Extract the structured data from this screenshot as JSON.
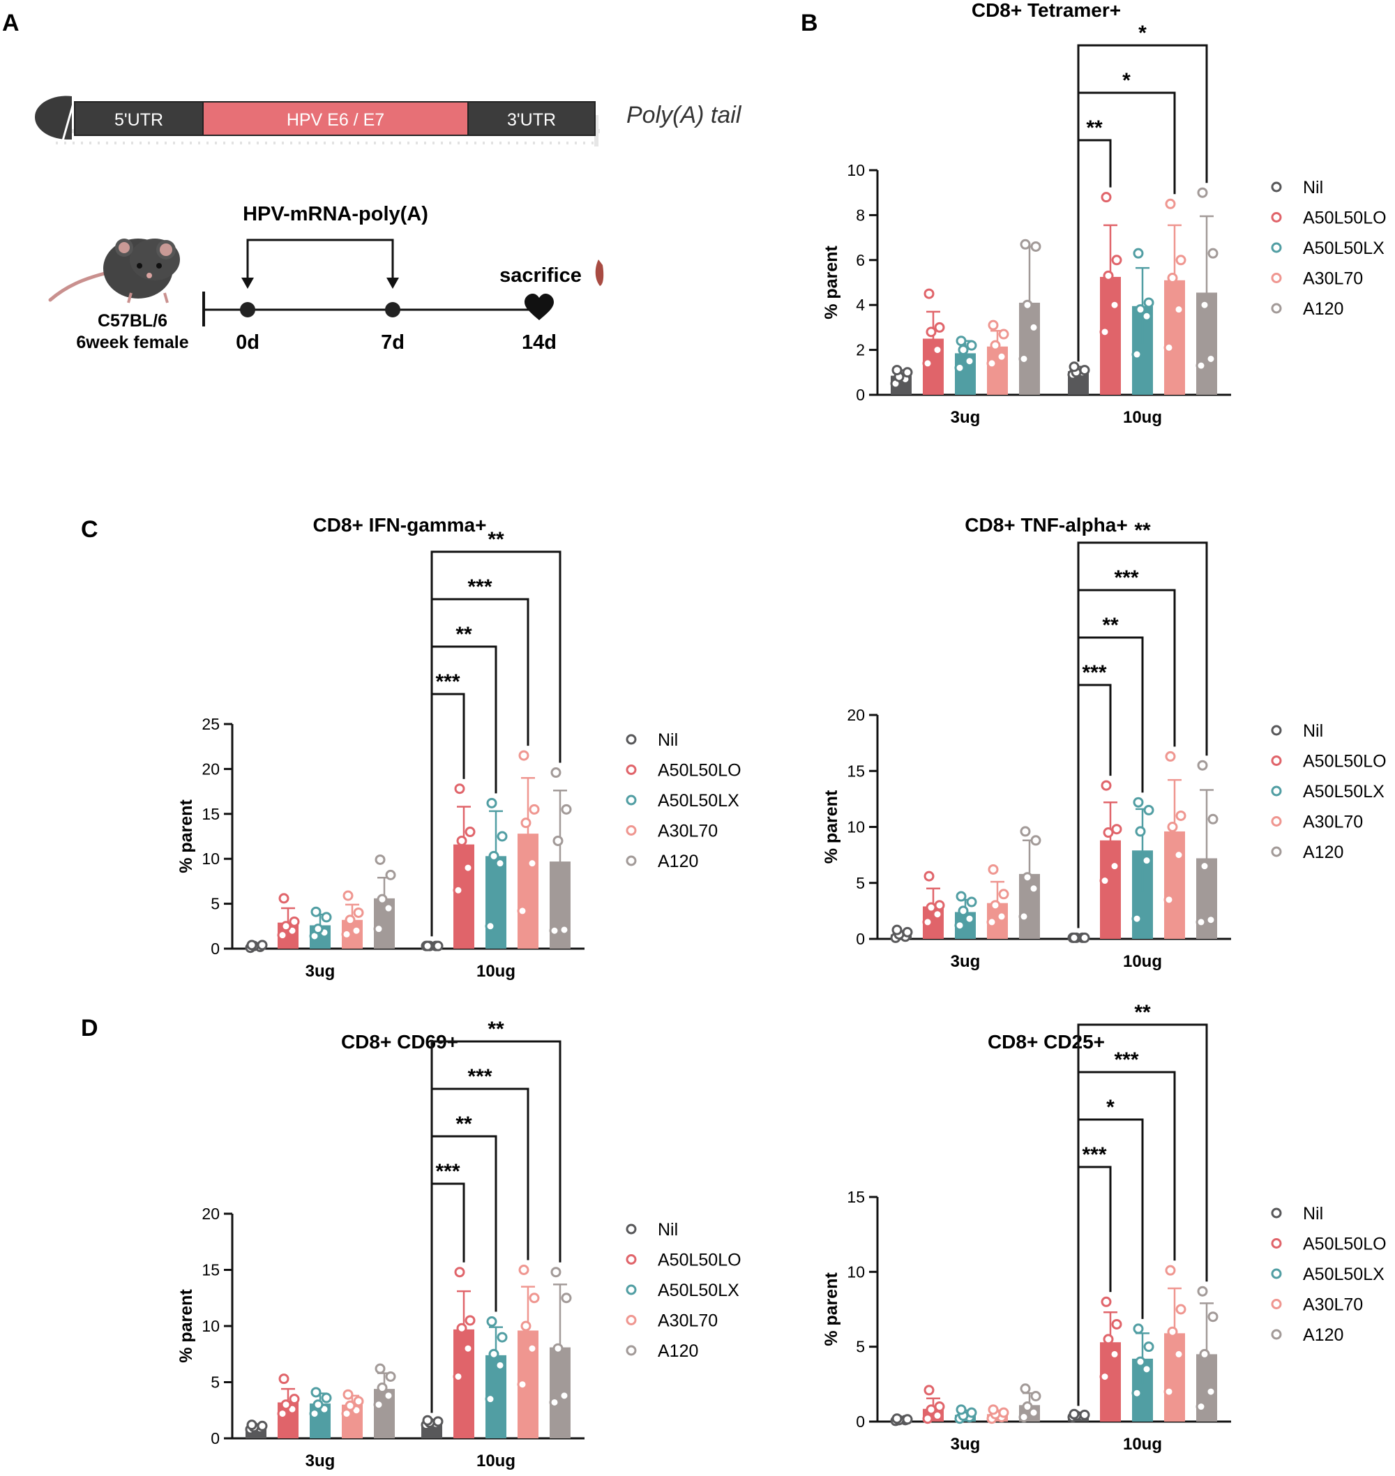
{
  "panels": {
    "A": "A",
    "B": "B",
    "C": "C",
    "D": "D"
  },
  "construct": {
    "utr5": "5'UTR",
    "insert": "HPV E6 / E7",
    "utr3": "3'UTR",
    "tail": "Poly(A) tail"
  },
  "schedule": {
    "title": "HPV-mRNA-poly(A)",
    "mouse_line1": "C57BL/6",
    "mouse_line2": "6week female",
    "day0": "0d",
    "day7": "7d",
    "day14": "14d",
    "endpoint": "sacrifice"
  },
  "colors": {
    "Nil": "#58585a",
    "A50L50LO": "#e0646a",
    "A50L50LX": "#519ea3",
    "A30L70": "#ef9690",
    "A120": "#a29a98"
  },
  "chart_data": [
    {
      "id": "tetramer",
      "type": "bar",
      "title": "CD8+ Tetramer+",
      "ylabel": "% parent",
      "ylim": [
        0,
        10
      ],
      "yticks": [
        0,
        2,
        4,
        6,
        8,
        10
      ],
      "categories": [
        "3ug",
        "10ug"
      ],
      "legend": [
        "Nil",
        "A50L50LO",
        "A50L50LX",
        "A30L70",
        "A120"
      ],
      "series": [
        {
          "name": "Nil",
          "values": [
            0.85,
            1.05
          ],
          "sd": [
            0.25,
            0.2
          ],
          "points": [
            [
              0.5,
              0.7,
              0.8,
              1.0,
              1.1
            ],
            [
              0.9,
              1.0,
              1.0,
              1.1,
              1.25
            ]
          ]
        },
        {
          "name": "A50L50LO",
          "values": [
            2.5,
            5.25
          ],
          "sd": [
            1.2,
            2.3
          ],
          "points": [
            [
              1.4,
              2.0,
              2.8,
              3.0,
              4.5
            ],
            [
              2.8,
              4.0,
              5.3,
              6.0,
              8.8
            ]
          ]
        },
        {
          "name": "A50L50LX",
          "values": [
            1.85,
            3.95
          ],
          "sd": [
            0.55,
            1.7
          ],
          "points": [
            [
              1.2,
              1.5,
              2.0,
              2.2,
              2.4
            ],
            [
              1.8,
              3.5,
              3.8,
              4.1,
              6.3
            ]
          ]
        },
        {
          "name": "A30L70",
          "values": [
            2.15,
            5.1
          ],
          "sd": [
            0.7,
            2.45
          ],
          "points": [
            [
              1.4,
              1.7,
              2.2,
              2.7,
              3.1
            ],
            [
              2.1,
              3.8,
              5.2,
              6.0,
              8.5
            ]
          ]
        },
        {
          "name": "A120",
          "values": [
            4.1,
            4.55
          ],
          "sd": [
            2.5,
            3.4
          ],
          "points": [
            [
              1.6,
              3.0,
              4.0,
              6.6,
              6.7
            ],
            [
              1.3,
              1.6,
              4.0,
              6.3,
              9.0
            ]
          ]
        }
      ],
      "significance": [
        {
          "group": "10ug",
          "from": "Nil",
          "to": "A50L50LO",
          "label": "**"
        },
        {
          "group": "10ug",
          "from": "Nil",
          "to": "A30L70",
          "label": "*"
        },
        {
          "group": "10ug",
          "from": "Nil",
          "to": "A120",
          "label": "*"
        }
      ]
    },
    {
      "id": "ifng",
      "type": "bar",
      "title": "CD8+ IFN-gamma+",
      "ylabel": "% parent",
      "ylim": [
        0,
        25
      ],
      "yticks": [
        0,
        5,
        10,
        15,
        20,
        25
      ],
      "categories": [
        "3ug",
        "10ug"
      ],
      "legend": [
        "Nil",
        "A50L50LO",
        "A50L50LX",
        "A30L70",
        "A120"
      ],
      "series": [
        {
          "name": "Nil",
          "values": [
            0.3,
            0.3
          ],
          "sd": [
            0.1,
            0.05
          ],
          "points": [
            [
              0.1,
              0.2,
              0.3,
              0.4,
              0.4
            ],
            [
              0.3,
              0.3,
              0.3,
              0.3,
              0.3
            ]
          ]
        },
        {
          "name": "A50L50LO",
          "values": [
            2.9,
            11.6
          ],
          "sd": [
            1.6,
            4.2
          ],
          "points": [
            [
              1.5,
              2.0,
              2.5,
              3.0,
              5.6
            ],
            [
              6.5,
              9.0,
              12.0,
              13.0,
              17.8
            ]
          ]
        },
        {
          "name": "A50L50LX",
          "values": [
            2.6,
            10.3
          ],
          "sd": [
            1.2,
            5.0
          ],
          "points": [
            [
              1.4,
              1.8,
              2.2,
              3.5,
              4.1
            ],
            [
              2.5,
              9.5,
              10.3,
              12.5,
              16.2
            ]
          ]
        },
        {
          "name": "A30L70",
          "values": [
            3.2,
            12.8
          ],
          "sd": [
            1.7,
            6.2
          ],
          "points": [
            [
              1.6,
              2.0,
              3.2,
              4.0,
              5.9
            ],
            [
              4.2,
              9.5,
              14.0,
              15.5,
              21.5
            ]
          ]
        },
        {
          "name": "A120",
          "values": [
            5.6,
            9.7
          ],
          "sd": [
            2.3,
            7.9
          ],
          "points": [
            [
              2.2,
              4.5,
              5.5,
              8.2,
              9.9
            ],
            [
              2.0,
              2.1,
              12.0,
              15.5,
              19.6
            ]
          ]
        }
      ],
      "significance": [
        {
          "group": "10ug",
          "from": "Nil",
          "to": "A50L50LO",
          "label": "***"
        },
        {
          "group": "10ug",
          "from": "Nil",
          "to": "A50L50LX",
          "label": "**"
        },
        {
          "group": "10ug",
          "from": "Nil",
          "to": "A30L70",
          "label": "***"
        },
        {
          "group": "10ug",
          "from": "Nil",
          "to": "A120",
          "label": "**"
        }
      ]
    },
    {
      "id": "tnfa",
      "type": "bar",
      "title": "CD8+ TNF-alpha+",
      "ylabel": "% parent",
      "ylim": [
        0,
        20
      ],
      "yticks": [
        0,
        5,
        10,
        15,
        20
      ],
      "categories": [
        "3ug",
        "10ug"
      ],
      "legend": [
        "Nil",
        "A50L50LO",
        "A50L50LX",
        "A30L70",
        "A120"
      ],
      "series": [
        {
          "name": "Nil",
          "values": [
            0.4,
            0.1
          ],
          "sd": [
            0.3,
            0.05
          ],
          "points": [
            [
              0.1,
              0.2,
              0.4,
              0.6,
              0.8
            ],
            [
              0.1,
              0.1,
              0.1,
              0.1,
              0.1
            ]
          ]
        },
        {
          "name": "A50L50LO",
          "values": [
            2.9,
            8.8
          ],
          "sd": [
            1.6,
            3.4
          ],
          "points": [
            [
              1.5,
              2.2,
              2.8,
              3.0,
              5.6
            ],
            [
              5.2,
              6.5,
              9.5,
              9.8,
              13.7
            ]
          ]
        },
        {
          "name": "A50L50LX",
          "values": [
            2.4,
            7.9
          ],
          "sd": [
            1.1,
            3.7
          ],
          "points": [
            [
              1.2,
              1.8,
              2.5,
              3.3,
              3.8
            ],
            [
              1.8,
              7.0,
              9.6,
              11.5,
              12.2
            ]
          ]
        },
        {
          "name": "A30L70",
          "values": [
            3.2,
            9.6
          ],
          "sd": [
            1.9,
            4.6
          ],
          "points": [
            [
              1.5,
              2.0,
              3.0,
              4.0,
              6.2
            ],
            [
              3.5,
              7.5,
              10.0,
              11.0,
              16.3
            ]
          ]
        },
        {
          "name": "A120",
          "values": [
            5.8,
            7.2
          ],
          "sd": [
            3.0,
            6.1
          ],
          "points": [
            [
              2.0,
              4.5,
              5.5,
              8.8,
              9.6
            ],
            [
              1.5,
              1.7,
              6.5,
              10.7,
              15.5
            ]
          ]
        }
      ],
      "significance": [
        {
          "group": "10ug",
          "from": "Nil",
          "to": "A50L50LO",
          "label": "***"
        },
        {
          "group": "10ug",
          "from": "Nil",
          "to": "A50L50LX",
          "label": "**"
        },
        {
          "group": "10ug",
          "from": "Nil",
          "to": "A30L70",
          "label": "***"
        },
        {
          "group": "10ug",
          "from": "Nil",
          "to": "A120",
          "label": "**"
        }
      ]
    },
    {
      "id": "cd69",
      "type": "bar",
      "title": "CD8+ CD69+",
      "ylabel": "% parent",
      "ylim": [
        0,
        20
      ],
      "yticks": [
        0,
        5,
        10,
        15,
        20
      ],
      "categories": [
        "3ug",
        "10ug"
      ],
      "legend": [
        "Nil",
        "A50L50LO",
        "A50L50LX",
        "A30L70",
        "A120"
      ],
      "series": [
        {
          "name": "Nil",
          "values": [
            1.0,
            1.4
          ],
          "sd": [
            0.15,
            0.15
          ],
          "points": [
            [
              0.8,
              0.9,
              1.0,
              1.1,
              1.2
            ],
            [
              1.2,
              1.3,
              1.4,
              1.5,
              1.6
            ]
          ]
        },
        {
          "name": "A50L50LO",
          "values": [
            3.2,
            9.7
          ],
          "sd": [
            1.2,
            3.4
          ],
          "points": [
            [
              2.2,
              2.6,
              3.0,
              3.5,
              5.3
            ],
            [
              5.5,
              8.0,
              9.8,
              10.5,
              14.8
            ]
          ]
        },
        {
          "name": "A50L50LX",
          "values": [
            3.1,
            7.4
          ],
          "sd": [
            0.9,
            2.5
          ],
          "points": [
            [
              2.2,
              2.6,
              3.0,
              3.6,
              4.1
            ],
            [
              3.5,
              6.5,
              7.5,
              9.0,
              10.4
            ]
          ]
        },
        {
          "name": "A30L70",
          "values": [
            3.0,
            9.6
          ],
          "sd": [
            0.8,
            3.9
          ],
          "points": [
            [
              2.2,
              2.5,
              2.9,
              3.3,
              3.9
            ],
            [
              4.8,
              8.0,
              10.0,
              12.5,
              15.0
            ]
          ]
        },
        {
          "name": "A120",
          "values": [
            4.4,
            8.1
          ],
          "sd": [
            1.4,
            5.6
          ],
          "points": [
            [
              3.0,
              3.8,
              4.5,
              5.5,
              6.2
            ],
            [
              3.2,
              3.8,
              8.0,
              12.5,
              14.8
            ]
          ]
        }
      ],
      "significance": [
        {
          "group": "10ug",
          "from": "Nil",
          "to": "A50L50LO",
          "label": "***"
        },
        {
          "group": "10ug",
          "from": "Nil",
          "to": "A50L50LX",
          "label": "**"
        },
        {
          "group": "10ug",
          "from": "Nil",
          "to": "A30L70",
          "label": "***"
        },
        {
          "group": "10ug",
          "from": "Nil",
          "to": "A120",
          "label": "**"
        }
      ]
    },
    {
      "id": "cd25",
      "type": "bar",
      "title": "CD8+ CD25+",
      "ylabel": "% parent",
      "ylim": [
        0,
        15
      ],
      "yticks": [
        0,
        5,
        10,
        15
      ],
      "categories": [
        "3ug",
        "10ug"
      ],
      "legend": [
        "Nil",
        "A50L50LO",
        "A50L50LX",
        "A30L70",
        "A120"
      ],
      "series": [
        {
          "name": "Nil",
          "values": [
            0.1,
            0.4
          ],
          "sd": [
            0.05,
            0.1
          ],
          "points": [
            [
              0.05,
              0.1,
              0.1,
              0.15,
              0.2
            ],
            [
              0.3,
              0.35,
              0.4,
              0.45,
              0.5
            ]
          ]
        },
        {
          "name": "A50L50LO",
          "values": [
            0.85,
            5.3
          ],
          "sd": [
            0.7,
            2.0
          ],
          "points": [
            [
              0.2,
              0.4,
              0.8,
              1.0,
              2.1
            ],
            [
              3.0,
              4.5,
              5.5,
              6.5,
              8.0
            ]
          ]
        },
        {
          "name": "A50L50LX",
          "values": [
            0.45,
            4.2
          ],
          "sd": [
            0.3,
            1.7
          ],
          "points": [
            [
              0.2,
              0.3,
              0.4,
              0.6,
              0.8
            ],
            [
              1.9,
              3.5,
              4.0,
              5.0,
              6.2
            ]
          ]
        },
        {
          "name": "A30L70",
          "values": [
            0.5,
            5.9
          ],
          "sd": [
            0.25,
            3.0
          ],
          "points": [
            [
              0.2,
              0.3,
              0.5,
              0.6,
              0.8
            ],
            [
              2.0,
              4.5,
              6.0,
              7.5,
              10.1
            ]
          ]
        },
        {
          "name": "A120",
          "values": [
            1.1,
            4.5
          ],
          "sd": [
            0.8,
            3.4
          ],
          "points": [
            [
              0.3,
              0.6,
              1.0,
              1.7,
              2.2
            ],
            [
              1.0,
              2.0,
              4.5,
              7.0,
              8.7
            ]
          ]
        }
      ],
      "significance": [
        {
          "group": "10ug",
          "from": "Nil",
          "to": "A50L50LO",
          "label": "***"
        },
        {
          "group": "10ug",
          "from": "Nil",
          "to": "A50L50LX",
          "label": "*"
        },
        {
          "group": "10ug",
          "from": "Nil",
          "to": "A30L70",
          "label": "***"
        },
        {
          "group": "10ug",
          "from": "Nil",
          "to": "A120",
          "label": "**"
        }
      ]
    }
  ]
}
